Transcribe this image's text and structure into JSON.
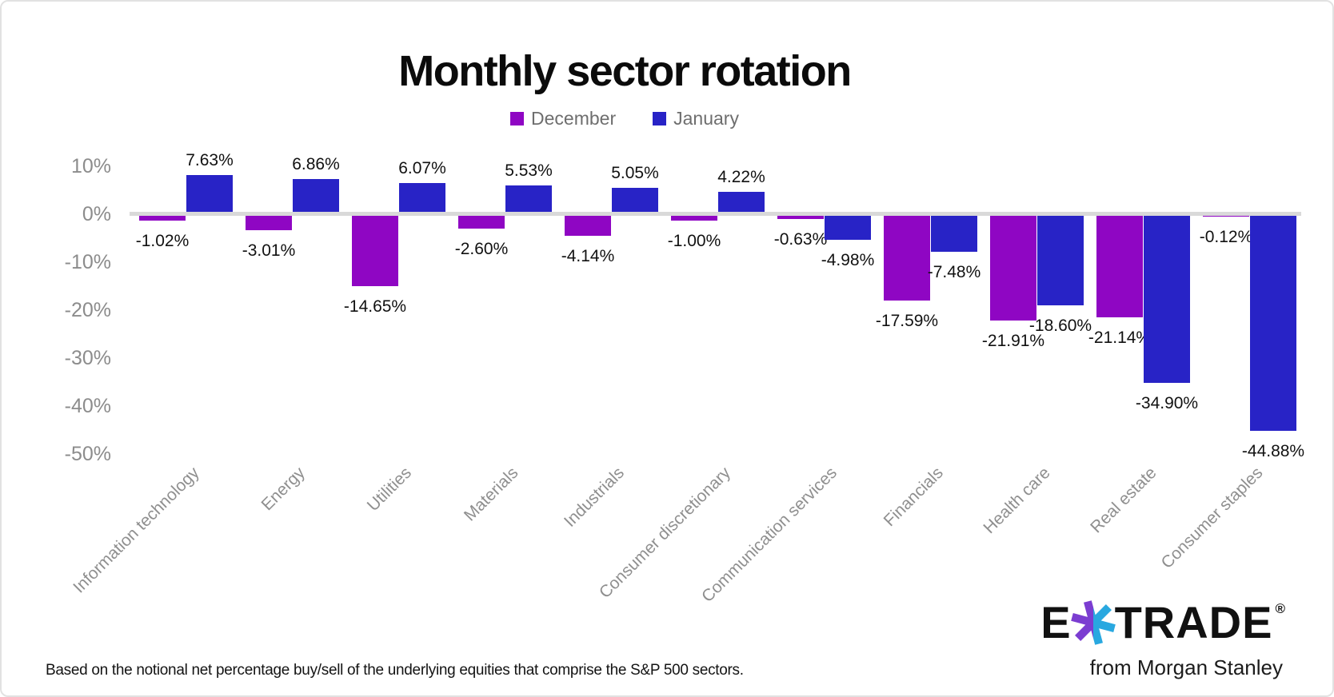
{
  "chart_data": {
    "type": "bar",
    "title": "Monthly sector rotation",
    "categories": [
      "Information technology",
      "Energy",
      "Utilities",
      "Materials",
      "Industrials",
      "Consumer discretionary",
      "Communication services",
      "Financials",
      "Health care",
      "Real estate",
      "Consumer staples"
    ],
    "series": [
      {
        "name": "December",
        "color": "#8F06C3",
        "values": [
          -1.02,
          -3.01,
          -14.65,
          -2.6,
          -4.14,
          -1.0,
          -0.63,
          -17.59,
          -21.91,
          -21.14,
          -0.12
        ]
      },
      {
        "name": "January",
        "color": "#2823C6",
        "values": [
          7.63,
          6.86,
          6.07,
          5.53,
          5.05,
          4.22,
          -4.98,
          -7.48,
          -18.6,
          -34.9,
          -44.88
        ]
      }
    ],
    "value_label_format": "0.00%",
    "y_axis": {
      "tick_labels": [
        "10%",
        "0%",
        "-10%",
        "-20%",
        "-30%",
        "-40%",
        "-50%"
      ],
      "tick_values": [
        10,
        0,
        -10,
        -20,
        -30,
        -40,
        -50
      ],
      "min": -50,
      "max": 10
    },
    "x_axis": {
      "label_rotation_deg": 45
    },
    "grid": false,
    "legend_position": "top",
    "zero_line_color": "#D9D9D9",
    "value_label_color": "#111111",
    "axis_text_color": "#8C8C8C"
  },
  "footer": {
    "note": "Based on the notional net percentage buy/sell of the underlying equities that comprise the S&P 500 sectors."
  },
  "branding": {
    "logo_e": "E",
    "logo_trade": "TRADE",
    "registered_mark": "®",
    "tagline": "from Morgan Stanley",
    "star_left_color": "#7B3DD1",
    "star_right_color": "#29A8E0"
  }
}
